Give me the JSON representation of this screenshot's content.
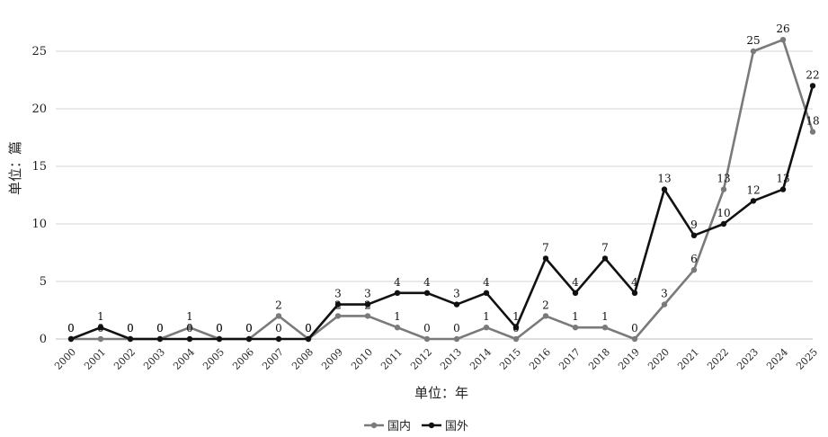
{
  "chart_data": {
    "type": "line",
    "title": "",
    "xlabel": "单位：年",
    "ylabel": "单位：篇",
    "ylim": [
      0,
      25
    ],
    "yticks": [
      0,
      5,
      10,
      15,
      20,
      25
    ],
    "grid": true,
    "legend_position": "bottom",
    "categories": [
      "2000",
      "2001",
      "2002",
      "2003",
      "2004",
      "2005",
      "2006",
      "2007",
      "2008",
      "2009",
      "2010",
      "2011",
      "2012",
      "2013",
      "2014",
      "2015",
      "2016",
      "2017",
      "2018",
      "2019",
      "2020",
      "2021",
      "2022",
      "2023",
      "2024",
      "2025"
    ],
    "series": [
      {
        "name": "国内",
        "color": "#7a7a7a",
        "values": [
          0,
          0,
          0,
          0,
          1,
          0,
          0,
          2,
          0,
          2,
          2,
          1,
          0,
          0,
          1,
          0,
          2,
          1,
          1,
          0,
          3,
          6,
          13,
          25,
          26,
          18
        ]
      },
      {
        "name": "国外",
        "color": "#111111",
        "values": [
          0,
          1,
          0,
          0,
          0,
          0,
          0,
          0,
          0,
          3,
          3,
          4,
          4,
          3,
          4,
          1,
          7,
          4,
          7,
          4,
          13,
          9,
          10,
          12,
          13,
          22
        ]
      }
    ]
  }
}
